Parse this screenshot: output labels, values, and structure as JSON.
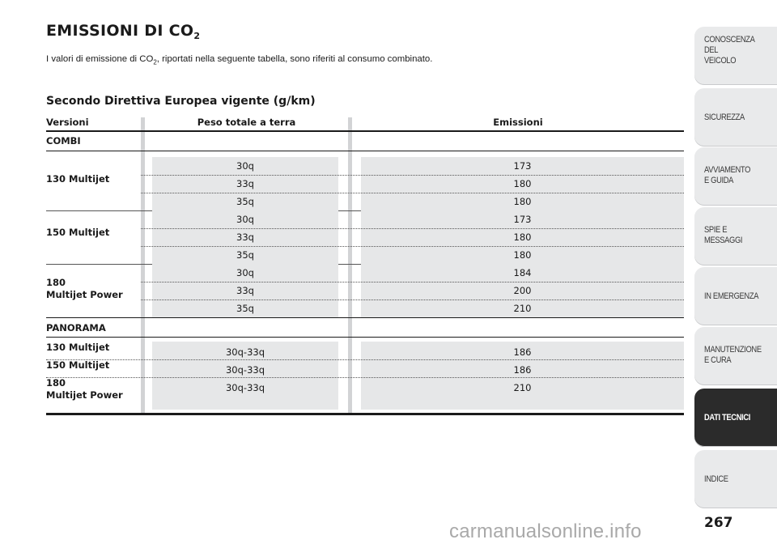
{
  "title": "EMISSIONI DI CO",
  "title_sub": "2",
  "intro_a": "I valori di emissione di CO",
  "intro_sub": "2",
  "intro_b": ", riportati nella seguente tabella, sono riferiti al consumo combinato.",
  "section_heading": "Secondo Direttiva Europea vigente (g/km)",
  "table": {
    "headers": [
      "Versioni",
      "Peso totale a terra",
      "Emissioni"
    ],
    "groups": [
      {
        "name": "COMBI",
        "versions": [
          {
            "label": "130 Multijet",
            "weights": [
              "30q",
              "33q",
              "35q"
            ],
            "emissions": [
              "173",
              "180",
              "180"
            ]
          },
          {
            "label": "150 Multijet",
            "weights": [
              "30q",
              "33q",
              "35q"
            ],
            "emissions": [
              "173",
              "180",
              "180"
            ]
          },
          {
            "label": "180\nMultijet Power",
            "weights": [
              "30q",
              "33q",
              "35q"
            ],
            "emissions": [
              "184",
              "200",
              "210"
            ]
          }
        ]
      },
      {
        "name": "PANORAMA",
        "versions": [
          {
            "label": "130 Multijet",
            "weights": [
              "30q-33q"
            ],
            "emissions": [
              "186"
            ]
          },
          {
            "label": "150 Multijet",
            "weights": [
              "30q-33q"
            ],
            "emissions": [
              "186"
            ]
          },
          {
            "label": "180\nMultijet Power",
            "weights": [
              "30q-33q"
            ],
            "emissions": [
              "210"
            ]
          }
        ]
      }
    ]
  },
  "sidebar_tabs": [
    {
      "label": "CONOSCENZA\nDEL\nVEICOLO",
      "active": false
    },
    {
      "label": "SICUREZZA",
      "active": false
    },
    {
      "label": "AVVIAMENTO\nE GUIDA",
      "active": false
    },
    {
      "label": "SPIE E\nMESSAGGI",
      "active": false
    },
    {
      "label": "IN EMERGENZA",
      "active": false
    },
    {
      "label": "MANUTENZIONE\nE CURA",
      "active": false
    },
    {
      "label": "DATI TECNICI",
      "active": true
    },
    {
      "label": "INDICE",
      "active": false
    }
  ],
  "page_number": "267",
  "watermark": "carmanualsonline.info",
  "colors": {
    "active_tab": "#2b2b2b",
    "tab": "#e9eaeb",
    "cell_shade": "#e6e7e8",
    "column_rule": "#d2d3d5"
  }
}
